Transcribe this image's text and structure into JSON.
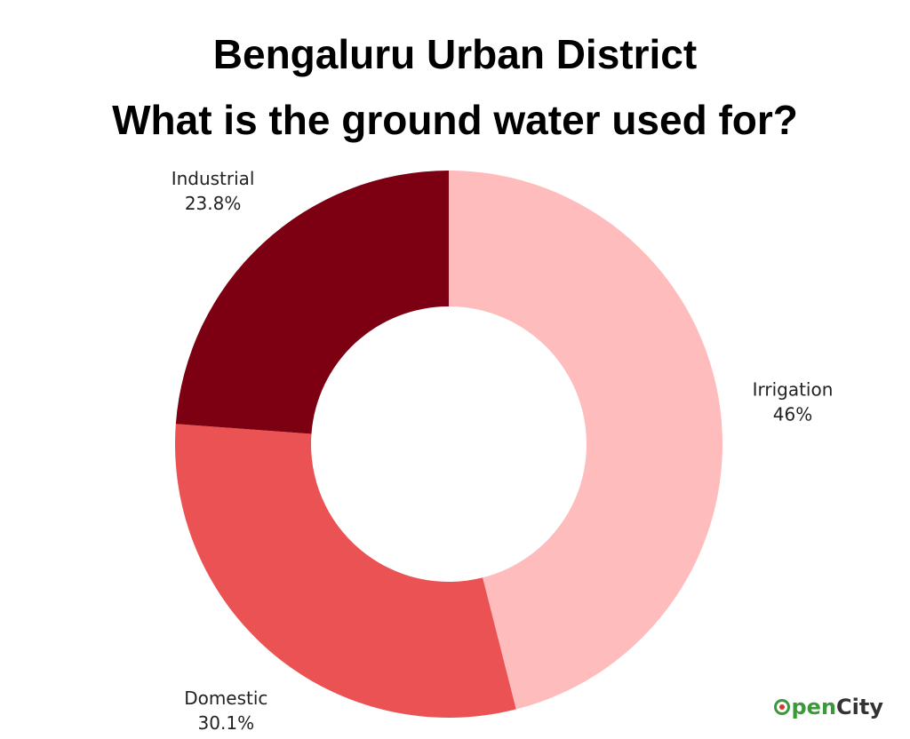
{
  "title_lines": [
    "Bengaluru Urban District",
    "What is the ground water used for?"
  ],
  "logo": {
    "part1": "pen",
    "part2": "City",
    "colors": {
      "green": "#3a9a3a",
      "red": "#d63a2f",
      "dark": "#333333"
    }
  },
  "chart_data": {
    "type": "pie",
    "title": "Bengaluru Urban District What is the ground water used for?",
    "donut": true,
    "start_angle_deg": 0,
    "direction": "clockwise",
    "slices": [
      {
        "label": "Irrigation",
        "value": 46,
        "value_label": "46%",
        "color": "#ffbcbd"
      },
      {
        "label": "Domestic",
        "value": 30.1,
        "value_label": "30.1%",
        "color": "#eb5253"
      },
      {
        "label": "Industrial",
        "value": 23.8,
        "value_label": "23.8%",
        "color": "#7d0012"
      }
    ],
    "legend": "none"
  }
}
